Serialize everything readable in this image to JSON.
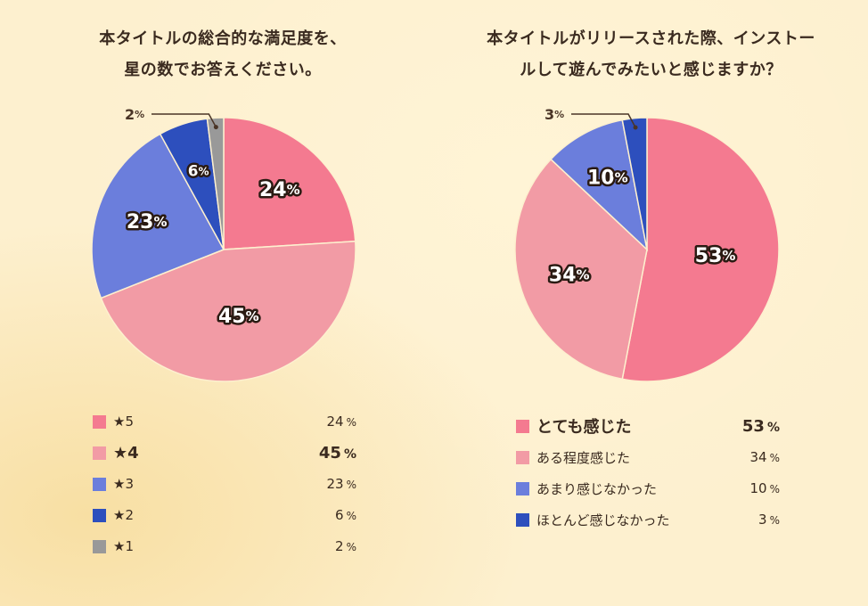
{
  "colors": {
    "pink_dark": "#f47a90",
    "pink_light": "#f29ba5",
    "blue_light": "#6b7edc",
    "blue_dark": "#2d4fbd",
    "gray": "#999999",
    "background": "#fdf0cf",
    "text": "#3a2a1f"
  },
  "left": {
    "title_line1": "本タイトルの総合的な満足度を、",
    "title_line2": "星の数でお答えください。",
    "callout": "2%",
    "legend": [
      {
        "label": "★5",
        "value": "24",
        "unit": "%",
        "color": "#f47a90",
        "bold": false
      },
      {
        "label": "★4",
        "value": "45",
        "unit": "%",
        "color": "#f29ba5",
        "bold": true
      },
      {
        "label": "★3",
        "value": "23",
        "unit": "%",
        "color": "#6b7edc",
        "bold": false
      },
      {
        "label": "★2",
        "value": "6",
        "unit": "%",
        "color": "#2d4fbd",
        "bold": false
      },
      {
        "label": "★1",
        "value": "2",
        "unit": "%",
        "color": "#999999",
        "bold": false
      }
    ]
  },
  "right": {
    "title_line1": "本タイトルがリリースされた際、インストー",
    "title_line2": "ルして遊んでみたいと感じますか？",
    "callout": "3%",
    "legend": [
      {
        "label": "とても感じた",
        "value": "53",
        "unit": "%",
        "color": "#f47a90",
        "bold": true
      },
      {
        "label": "ある程度感じた",
        "value": "34",
        "unit": "%",
        "color": "#f29ba5",
        "bold": false
      },
      {
        "label": "あまり感じなかった",
        "value": "10",
        "unit": "%",
        "color": "#6b7edc",
        "bold": false
      },
      {
        "label": "ほとんど感じなかった",
        "value": "3",
        "unit": "%",
        "color": "#2d4fbd",
        "bold": false
      }
    ]
  },
  "chart_data": [
    {
      "type": "pie",
      "title": "本タイトルの総合的な満足度を、星の数でお答えください。",
      "categories": [
        "★5",
        "★4",
        "★3",
        "★2",
        "★1"
      ],
      "values": [
        24,
        45,
        23,
        6,
        2
      ],
      "unit": "%",
      "colors": [
        "#f47a90",
        "#f29ba5",
        "#6b7edc",
        "#2d4fbd",
        "#999999"
      ],
      "slice_labels": [
        "24%",
        "45%",
        "23%",
        "6%",
        "2%"
      ],
      "start_angle": "12 o'clock, clockwise",
      "legend_position": "bottom"
    },
    {
      "type": "pie",
      "title": "本タイトルがリリースされた際、インストールして遊んでみたいと感じますか？",
      "categories": [
        "とても感じた",
        "ある程度感じた",
        "あまり感じなかった",
        "ほとんど感じなかった"
      ],
      "values": [
        53,
        34,
        10,
        3
      ],
      "unit": "%",
      "colors": [
        "#f47a90",
        "#f29ba5",
        "#6b7edc",
        "#2d4fbd"
      ],
      "slice_labels": [
        "53%",
        "34%",
        "10%",
        "3%"
      ],
      "start_angle": "12 o'clock, clockwise",
      "legend_position": "bottom"
    }
  ]
}
